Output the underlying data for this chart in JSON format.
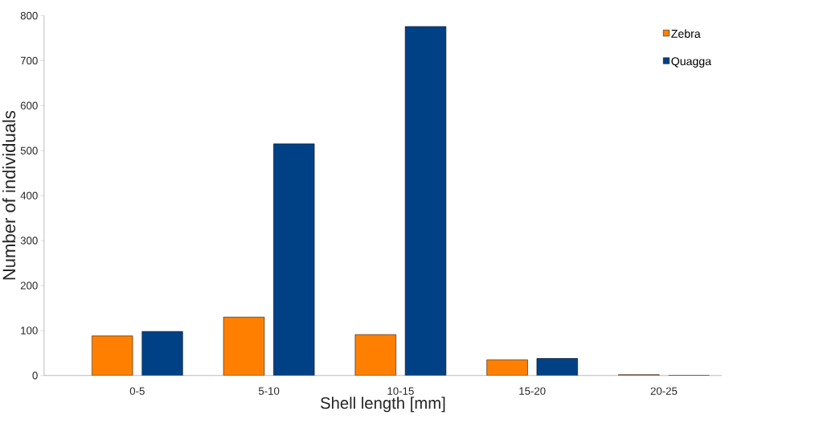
{
  "chart_data": {
    "type": "bar",
    "xlabel": "Shell length [mm]",
    "ylabel": "Number of individuals",
    "categories": [
      "0-5",
      "5-10",
      "10-15",
      "15-20",
      "20-25"
    ],
    "series": [
      {
        "name": "Zebra",
        "color": "#ff8000",
        "values": [
          88,
          130,
          91,
          35,
          2
        ]
      },
      {
        "name": "Quagga",
        "color": "#004186",
        "values": [
          98,
          515,
          776,
          38,
          0
        ]
      }
    ],
    "ylim": [
      0,
      800
    ],
    "yticks": [
      0,
      100,
      200,
      300,
      400,
      500,
      600,
      700,
      800
    ],
    "legend": "top right"
  }
}
